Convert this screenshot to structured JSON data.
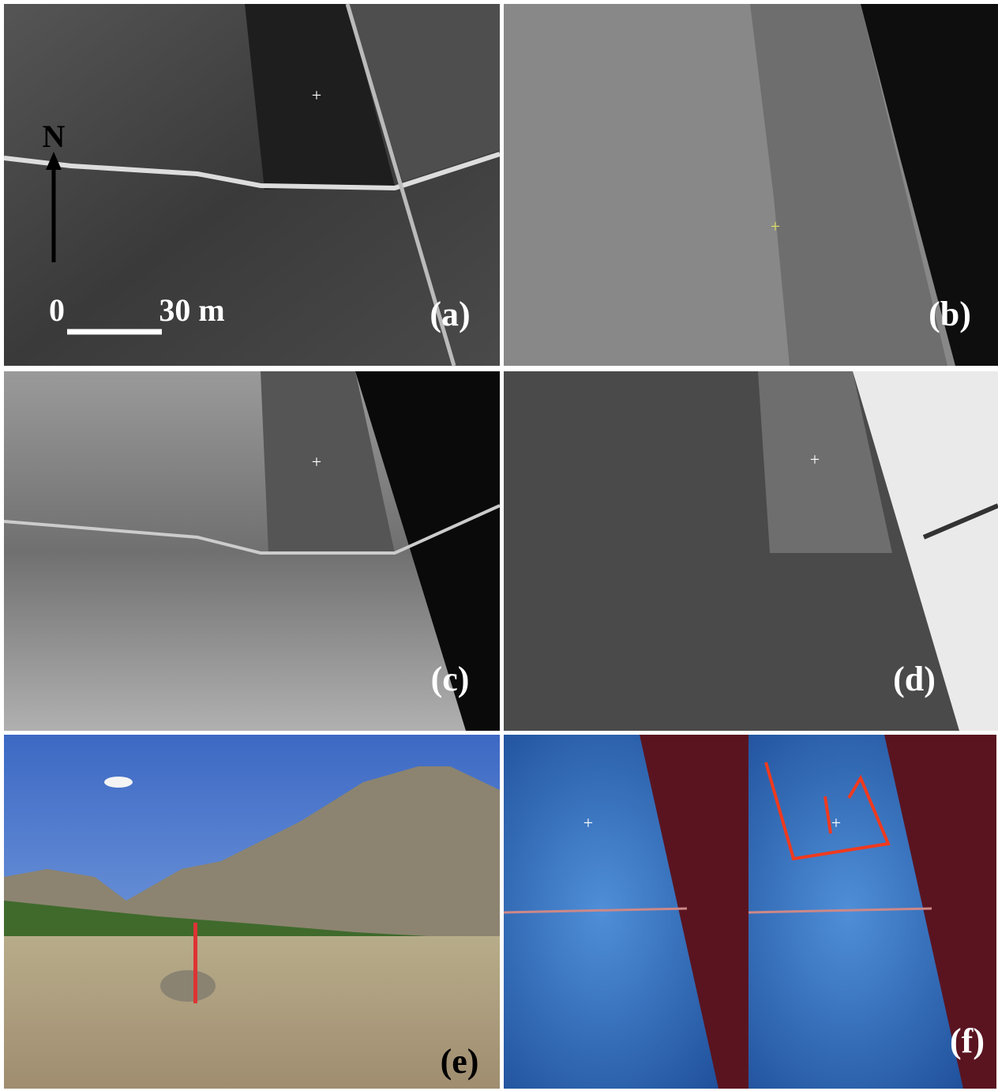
{
  "panels": [
    {
      "label": "(a)"
    },
    {
      "label": "(b)"
    },
    {
      "label": "(c)"
    },
    {
      "label": "(d)"
    },
    {
      "label": "(e)"
    },
    {
      "label": "(f)"
    }
  ],
  "scale": {
    "north": "N",
    "start": "0",
    "end": "30 m"
  }
}
